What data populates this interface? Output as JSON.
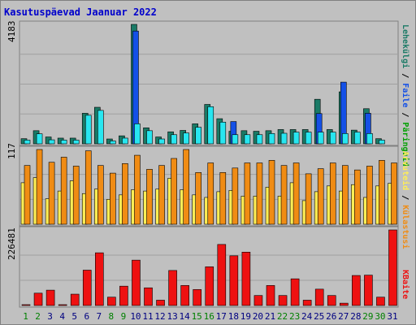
{
  "title": "Kasutuspäevad Jaanuar 2022",
  "colors": {
    "pageviews": "#1a7a66",
    "files": "#1450e6",
    "hits": "#28e6f0",
    "visits": "#f08c14",
    "sites": "#ffee55",
    "kbytes": "#ee1111",
    "weekend_day": "#008000",
    "weekday": "#000080"
  },
  "chart_data": [
    {
      "type": "bar",
      "panel": "top",
      "max_label": "4183",
      "axis_labels": [
        "Päringuid",
        "Faile",
        "Lehekülgi"
      ],
      "axis_separator": " / ",
      "legend_colors": [
        "#00a000",
        "#1450e6",
        "#1a7a66"
      ],
      "x": [
        "1",
        "2",
        "3",
        "4",
        "5",
        "6",
        "7",
        "8",
        "9",
        "10",
        "11",
        "12",
        "13",
        "14",
        "15",
        "16",
        "17",
        "18",
        "19",
        "20",
        "21",
        "22",
        "23",
        "24",
        "25",
        "26",
        "27",
        "28",
        "29",
        "30",
        "31"
      ],
      "weekend": [
        "1",
        "2",
        "8",
        "9",
        "15",
        "16",
        "22",
        "23",
        "29",
        "30"
      ],
      "ylim": [
        0,
        4183
      ],
      "series": [
        {
          "name": "Lehekülgi",
          "values": [
            180,
            460,
            240,
            200,
            200,
            1070,
            1280,
            170,
            280,
            4183,
            560,
            240,
            420,
            470,
            700,
            1380,
            880,
            440,
            460,
            440,
            460,
            500,
            500,
            500,
            1560,
            500,
            1820,
            480,
            1230,
            180,
            0
          ]
        },
        {
          "name": "Faile",
          "values": [
            0,
            0,
            0,
            0,
            0,
            0,
            0,
            0,
            0,
            3950,
            0,
            0,
            0,
            0,
            0,
            0,
            0,
            780,
            0,
            0,
            0,
            0,
            0,
            0,
            1060,
            0,
            2160,
            0,
            1070,
            0,
            0
          ]
        },
        {
          "name": "Päringuid",
          "values": [
            130,
            350,
            140,
            130,
            130,
            1000,
            1170,
            100,
            200,
            700,
            460,
            170,
            320,
            380,
            580,
            1300,
            760,
            320,
            320,
            320,
            360,
            370,
            410,
            410,
            410,
            410,
            360,
            410,
            360,
            130,
            0
          ]
        }
      ]
    },
    {
      "type": "bar",
      "panel": "middle",
      "max_label": "117",
      "axis_labels": [
        "Külastusi",
        "Arvuteid"
      ],
      "axis_separator": " / ",
      "legend_colors": [
        "#f08c14",
        "#ffee55"
      ],
      "x": [
        "1",
        "2",
        "3",
        "4",
        "5",
        "6",
        "7",
        "8",
        "9",
        "10",
        "11",
        "12",
        "13",
        "14",
        "15",
        "16",
        "17",
        "18",
        "19",
        "20",
        "21",
        "22",
        "23",
        "24",
        "25",
        "26",
        "27",
        "28",
        "29",
        "30",
        "31"
      ],
      "ylim": [
        0,
        117
      ],
      "series": [
        {
          "name": "Külastusi",
          "values": [
            92,
            117,
            97,
            105,
            91,
            115,
            92,
            80,
            95,
            108,
            86,
            92,
            103,
            117,
            81,
            96,
            81,
            88,
            96,
            96,
            100,
            92,
            96,
            79,
            87,
            96,
            92,
            85,
            91,
            100,
            96
          ]
        },
        {
          "name": "Arvuteid",
          "values": [
            65,
            73,
            40,
            52,
            68,
            48,
            55,
            39,
            46,
            54,
            52,
            55,
            72,
            54,
            46,
            42,
            51,
            53,
            44,
            44,
            58,
            44,
            65,
            37,
            51,
            60,
            52,
            62,
            42,
            60,
            64
          ]
        }
      ]
    },
    {
      "type": "bar",
      "panel": "bottom",
      "max_label": "226481",
      "axis_labels": [
        "KBaite"
      ],
      "legend_colors": [
        "#ee1111"
      ],
      "x": [
        "1",
        "2",
        "3",
        "4",
        "5",
        "6",
        "7",
        "8",
        "9",
        "10",
        "11",
        "12",
        "13",
        "14",
        "15",
        "16",
        "17",
        "18",
        "19",
        "20",
        "21",
        "22",
        "23",
        "24",
        "25",
        "26",
        "27",
        "28",
        "29",
        "30",
        "31"
      ],
      "ylim": [
        0,
        226481
      ],
      "series": [
        {
          "name": "KBaite",
          "values": [
            2500,
            37000,
            46000,
            2500,
            34000,
            106000,
            158000,
            25000,
            58000,
            136000,
            53000,
            16000,
            105000,
            60000,
            48000,
            116000,
            183000,
            149000,
            160000,
            30000,
            60000,
            30000,
            80000,
            16000,
            49000,
            30000,
            7000,
            90000,
            91000,
            25000,
            226481
          ]
        }
      ]
    }
  ]
}
